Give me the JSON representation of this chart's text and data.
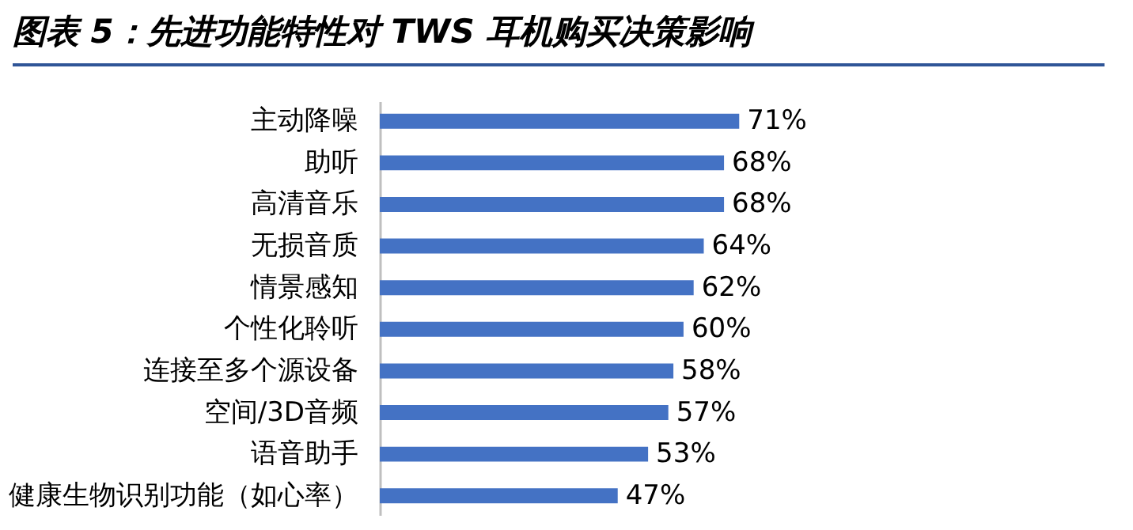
{
  "chart_data": {
    "type": "bar",
    "orientation": "horizontal",
    "title": "图表 5：先进功能特性对 TWS 耳机购买决策影响",
    "categories": [
      "主动降噪",
      "助听",
      "高清音乐",
      "无损音质",
      "情景感知",
      "个性化聆听",
      "连接至多个源设备",
      "空间/3D音频",
      "语音助手",
      "健康生物识别功能（如心率）"
    ],
    "values": [
      71,
      68,
      68,
      64,
      62,
      60,
      58,
      57,
      53,
      47
    ],
    "value_labels": [
      "71%",
      "68%",
      "68%",
      "64%",
      "62%",
      "60%",
      "58%",
      "57%",
      "53%",
      "47%"
    ],
    "color": "#4472c4"
  }
}
